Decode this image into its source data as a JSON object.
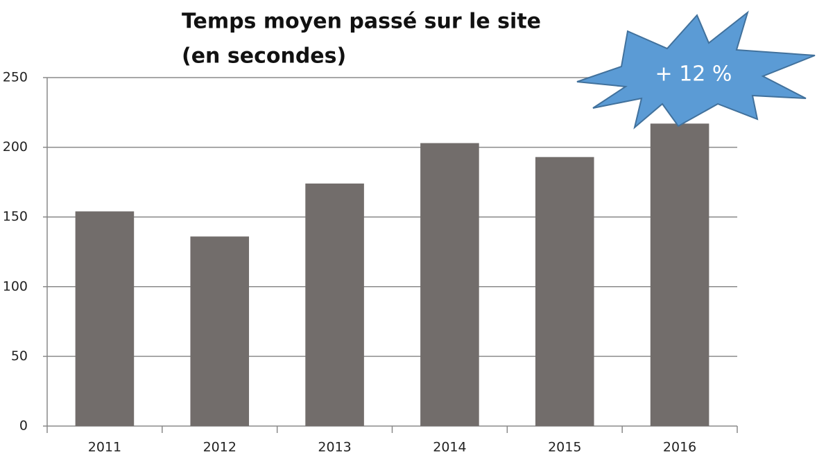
{
  "chart_data": {
    "type": "bar",
    "title": [
      "Temps moyen passé sur le site",
      "(en secondes)"
    ],
    "annotation": "+ 12 %",
    "categories": [
      "2011",
      "2012",
      "2013",
      "2014",
      "2015",
      "2016"
    ],
    "values": [
      154,
      136,
      174,
      203,
      193,
      217
    ],
    "color": "#726d6b",
    "ylim": [
      0,
      250
    ],
    "yticks": [
      0,
      50,
      100,
      150,
      200,
      250
    ],
    "grid": true
  }
}
